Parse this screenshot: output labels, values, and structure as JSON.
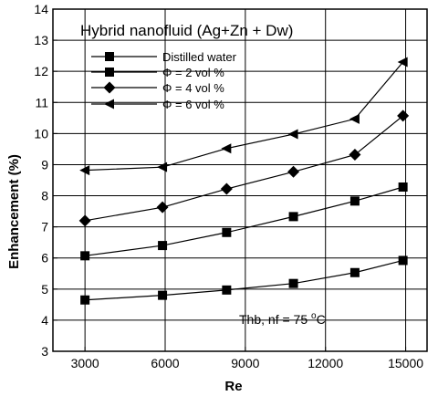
{
  "chart_data": {
    "type": "line",
    "title": "Hybrid nanofluid (Ag+Zn + Dw)",
    "xlabel": "Re",
    "ylabel": "Enhancement (%)",
    "xlim": [
      1800,
      15800
    ],
    "ylim": [
      3,
      14
    ],
    "xticks": [
      3000,
      6000,
      9000,
      12000,
      15000
    ],
    "yticks": [
      3,
      4,
      5,
      6,
      7,
      8,
      9,
      10,
      11,
      12,
      13,
      14
    ],
    "grid": true,
    "legend_position": "top-left",
    "annotation": "Thb, nf = 75 °C",
    "series": [
      {
        "name": "Distilled water",
        "marker": "square",
        "x": [
          3000,
          5900,
          8300,
          10800,
          13100,
          14900
        ],
        "values": [
          4.65,
          4.8,
          4.97,
          5.18,
          5.53,
          5.92
        ]
      },
      {
        "name": "Φ = 2 vol %",
        "marker": "square",
        "x": [
          3000,
          5900,
          8300,
          10800,
          13100,
          14900
        ],
        "values": [
          6.07,
          6.4,
          6.82,
          7.33,
          7.83,
          8.28
        ]
      },
      {
        "name": "Φ = 4 vol %",
        "marker": "diamond",
        "x": [
          3000,
          5900,
          8300,
          10800,
          13100,
          14900
        ],
        "values": [
          7.2,
          7.63,
          8.22,
          8.77,
          9.32,
          10.57
        ]
      },
      {
        "name": "Φ = 6 vol %",
        "marker": "triangle-left",
        "x": [
          3000,
          5900,
          8300,
          10800,
          13100,
          14900
        ],
        "values": [
          8.82,
          8.92,
          9.52,
          9.98,
          10.47,
          12.3
        ]
      }
    ]
  }
}
